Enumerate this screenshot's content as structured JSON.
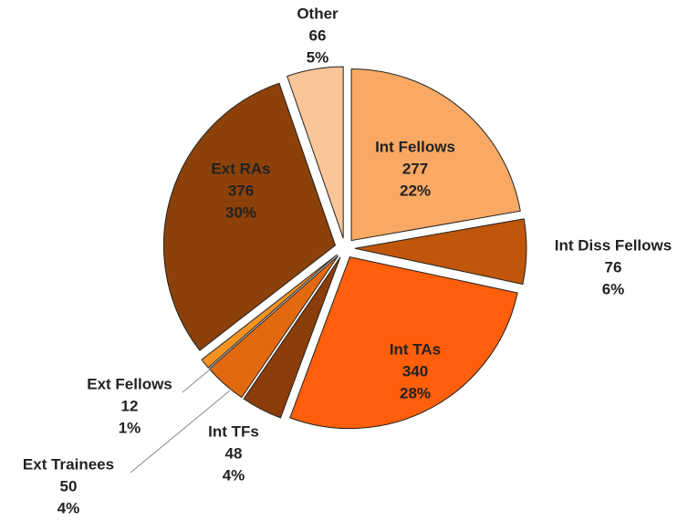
{
  "chart_data": {
    "type": "pie",
    "categories": [
      "Int Fellows",
      "Int Diss Fellows",
      "Int TAs",
      "Int TFs",
      "Ext Trainees",
      "Ext Fellows",
      "Ext RAs",
      "Other"
    ],
    "values": [
      277,
      76,
      340,
      48,
      50,
      12,
      376,
      66
    ],
    "percent_labels": [
      "22%",
      "6%",
      "28%",
      "4%",
      "4%",
      "1%",
      "30%",
      "5%"
    ],
    "colors": [
      "#f9a963",
      "#c05609",
      "#ff5e0a",
      "#8a3d08",
      "#e2690f",
      "#f39221",
      "#8b4109",
      "#fbc59a"
    ]
  }
}
